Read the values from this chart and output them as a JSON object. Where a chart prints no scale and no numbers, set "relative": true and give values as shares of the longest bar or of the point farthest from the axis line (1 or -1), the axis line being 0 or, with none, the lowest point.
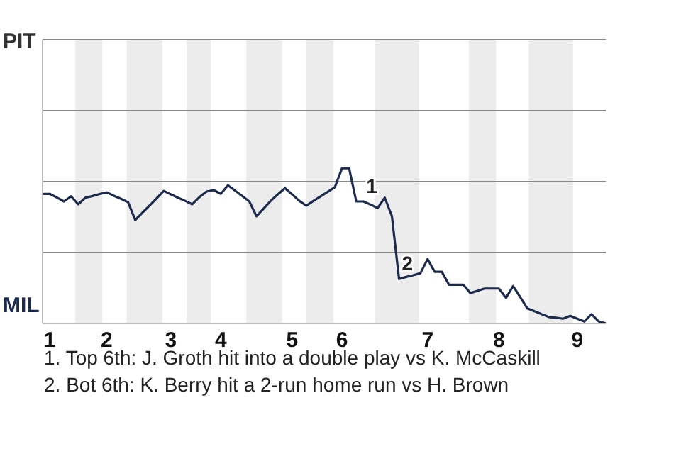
{
  "chart_data": {
    "type": "line",
    "relative": true,
    "categories": [
      null,
      "1",
      null,
      null,
      null,
      null,
      null,
      null,
      null,
      "2",
      null,
      null,
      null,
      null,
      null,
      null,
      null,
      null,
      "3",
      null,
      null,
      null,
      null,
      null,
      null,
      "4",
      null,
      null,
      null,
      null,
      null,
      null,
      null,
      null,
      null,
      "5",
      null,
      null,
      null,
      null,
      null,
      null,
      "6",
      null,
      null,
      null,
      null,
      null,
      null,
      null,
      null,
      null,
      null,
      null,
      "7",
      null,
      null,
      null,
      null,
      null,
      null,
      null,
      null,
      null,
      "8",
      null,
      null,
      null,
      null,
      null,
      null,
      null,
      null,
      null,
      null,
      "9",
      null,
      null,
      null,
      null
    ],
    "series": [
      {
        "color": "#1c2a4e",
        "values": [
          0.835,
          0.835,
          0.812,
          0.786,
          0.819,
          0.768,
          0.81,
          0.821,
          0.834,
          0.845,
          0.823,
          0.803,
          0.781,
          0.667,
          0.713,
          0.759,
          0.806,
          0.854,
          0.832,
          0.81,
          0.79,
          0.768,
          0.814,
          0.85,
          0.859,
          0.835,
          0.89,
          0.856,
          0.821,
          0.786,
          0.691,
          0.74,
          0.79,
          0.832,
          0.872,
          0.832,
          0.79,
          0.759,
          0.79,
          0.819,
          0.848,
          0.878,
          1,
          1,
          0.786,
          0.786,
          0.766,
          0.744,
          0.81,
          0.691,
          0.287,
          0.3,
          0.311,
          0.324,
          0.415,
          0.333,
          0.333,
          0.25,
          0.25,
          0.25,
          0.196,
          0.21,
          0.225,
          0.225,
          0.225,
          0.165,
          0.241,
          0.17,
          0.097,
          0.079,
          0.06,
          0.042,
          0.037,
          0.031,
          0.049,
          0.031,
          0.013,
          0.06,
          0.013,
          0
        ]
      }
    ],
    "ref_lines": [
      {
        "axis": "y",
        "value": 0.457,
        "color": "#888888"
      },
      {
        "axis": "y",
        "value": 0.914,
        "color": "#888888"
      },
      {
        "axis": "y",
        "value": 1.371,
        "color": "#888888"
      },
      {
        "axis": "y",
        "value": 1.828,
        "color": "#888888"
      }
    ],
    "annotations": [
      "PIT",
      "MIL",
      "1. Top 6th: J. Groth hit into a double play vs K. McCaskill",
      "2. Bot 6th: K. Berry hit a 2-run home run vs H. Brown",
      {
        "text": "1",
        "y": 0.786
      },
      {
        "text": "2",
        "y": 0.287
      }
    ]
  }
}
